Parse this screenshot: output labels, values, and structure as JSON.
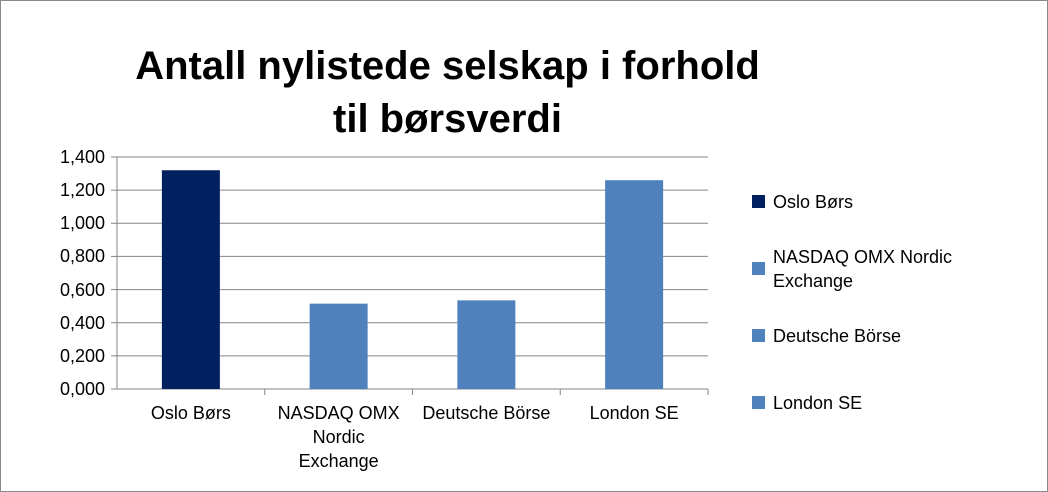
{
  "chart_data": {
    "type": "bar",
    "title": "Antall nylistede selskap i forhold til børsverdi",
    "categories": [
      "Oslo Børs",
      "NASDAQ OMX Nordic Exchange",
      "Deutsche Börse",
      "London SE"
    ],
    "values": [
      1.32,
      0.515,
      0.535,
      1.26
    ],
    "colors": [
      "#002060",
      "#4f81bd",
      "#4f81bd",
      "#4f81bd"
    ],
    "ylim": [
      0,
      1.4
    ],
    "yticks": [
      {
        "value": 0,
        "label": "0,000"
      },
      {
        "value": 0.2,
        "label": "0,200"
      },
      {
        "value": 0.4,
        "label": "0,400"
      },
      {
        "value": 0.6,
        "label": "0,600"
      },
      {
        "value": 0.8,
        "label": "0,800"
      },
      {
        "value": 1,
        "label": "1,000"
      },
      {
        "value": 1.2,
        "label": "1,200"
      },
      {
        "value": 1.4,
        "label": "1,400"
      }
    ],
    "grid": true,
    "legend": "right"
  }
}
